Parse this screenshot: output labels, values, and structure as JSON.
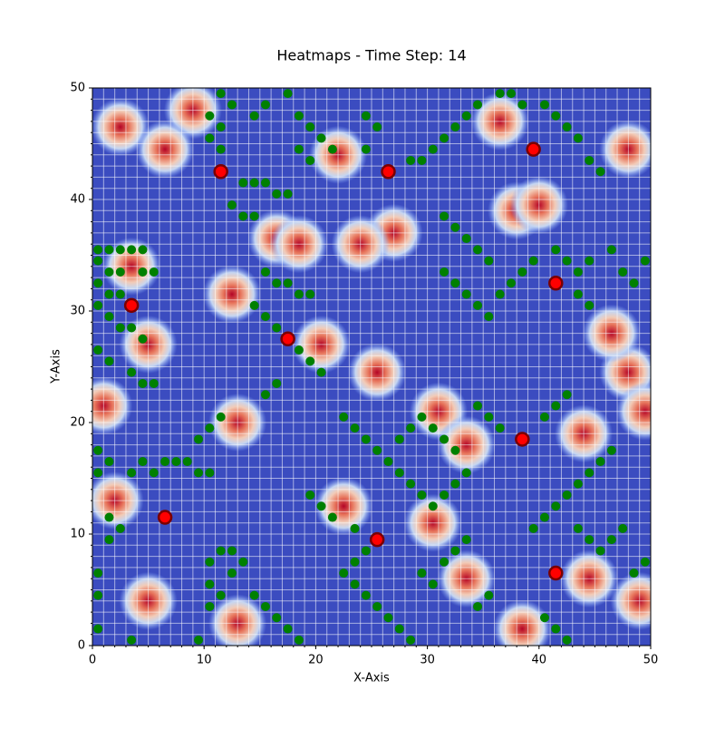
{
  "chart_data": {
    "type": "heatmap-scatter",
    "title": "Heatmaps - Time Step: 14",
    "x_label": "X-Axis",
    "y_label": "Y-Axis",
    "xlim": [
      0,
      50
    ],
    "ylim": [
      0,
      50
    ],
    "xticks": [
      0,
      10,
      20,
      30,
      40,
      50
    ],
    "yticks": [
      0,
      10,
      20,
      30,
      40,
      50
    ],
    "minor_step": 1,
    "grid": true,
    "background_color": "#3b4cc0",
    "hotspots": [
      [
        2.5,
        46.5
      ],
      [
        9,
        48
      ],
      [
        6.5,
        44.5
      ],
      [
        3.5,
        34
      ],
      [
        5,
        27
      ],
      [
        1,
        21.5
      ],
      [
        13,
        20
      ],
      [
        16.5,
        36.5
      ],
      [
        12.5,
        31.5
      ],
      [
        18.5,
        36
      ],
      [
        20.5,
        27
      ],
      [
        25.5,
        24.5
      ],
      [
        22.5,
        12.5
      ],
      [
        30.5,
        11
      ],
      [
        31,
        21
      ],
      [
        33.5,
        18
      ],
      [
        38,
        39
      ],
      [
        40,
        39.5
      ],
      [
        36.5,
        47
      ],
      [
        48,
        44.5
      ],
      [
        48,
        24.5
      ],
      [
        49.5,
        21
      ],
      [
        44,
        19
      ],
      [
        44.5,
        6
      ],
      [
        38.5,
        1.5
      ],
      [
        33.5,
        6
      ],
      [
        5,
        4
      ],
      [
        13,
        2
      ],
      [
        22,
        44
      ],
      [
        27,
        37
      ],
      [
        24,
        36
      ],
      [
        46.5,
        28
      ],
      [
        2,
        13
      ],
      [
        49,
        4
      ]
    ],
    "series": [
      {
        "color": "green",
        "points": [
          [
            0.5,
            35.5
          ],
          [
            1.5,
            35.5
          ],
          [
            2.5,
            35.5
          ],
          [
            3.5,
            35.5
          ],
          [
            4.5,
            35.5
          ],
          [
            0.5,
            34.5
          ],
          [
            1.5,
            33.5
          ],
          [
            2.5,
            33.5
          ],
          [
            4.5,
            33.5
          ],
          [
            5.5,
            33.5
          ],
          [
            0.5,
            32.5
          ],
          [
            1.5,
            31.5
          ],
          [
            2.5,
            31.5
          ],
          [
            0.5,
            30.5
          ],
          [
            1.5,
            29.5
          ],
          [
            2.5,
            28.5
          ],
          [
            3.5,
            28.5
          ],
          [
            4.5,
            27.5
          ],
          [
            0.5,
            26.5
          ],
          [
            1.5,
            25.5
          ],
          [
            3.5,
            24.5
          ],
          [
            4.5,
            23.5
          ],
          [
            5.5,
            23.5
          ],
          [
            11.5,
            49.5
          ],
          [
            12.5,
            48.5
          ],
          [
            10.5,
            47.5
          ],
          [
            11.5,
            46.5
          ],
          [
            10.5,
            45.5
          ],
          [
            11.5,
            44.5
          ],
          [
            14.5,
            47.5
          ],
          [
            15.5,
            48.5
          ],
          [
            17.5,
            49.5
          ],
          [
            13.5,
            41.5
          ],
          [
            14.5,
            41.5
          ],
          [
            15.5,
            41.5
          ],
          [
            16.5,
            40.5
          ],
          [
            17.5,
            40.5
          ],
          [
            12.5,
            39.5
          ],
          [
            13.5,
            38.5
          ],
          [
            14.5,
            38.5
          ],
          [
            15.5,
            33.5
          ],
          [
            16.5,
            32.5
          ],
          [
            17.5,
            32.5
          ],
          [
            18.5,
            31.5
          ],
          [
            19.5,
            31.5
          ],
          [
            14.5,
            30.5
          ],
          [
            15.5,
            29.5
          ],
          [
            16.5,
            28.5
          ],
          [
            18.5,
            26.5
          ],
          [
            19.5,
            25.5
          ],
          [
            20.5,
            24.5
          ],
          [
            16.5,
            23.5
          ],
          [
            15.5,
            22.5
          ],
          [
            18.5,
            47.5
          ],
          [
            19.5,
            46.5
          ],
          [
            20.5,
            45.5
          ],
          [
            21.5,
            44.5
          ],
          [
            18.5,
            44.5
          ],
          [
            19.5,
            43.5
          ],
          [
            24.5,
            47.5
          ],
          [
            25.5,
            46.5
          ],
          [
            24.5,
            44.5
          ],
          [
            28.5,
            43.5
          ],
          [
            29.5,
            43.5
          ],
          [
            30.5,
            44.5
          ],
          [
            31.5,
            45.5
          ],
          [
            32.5,
            46.5
          ],
          [
            33.5,
            47.5
          ],
          [
            34.5,
            48.5
          ],
          [
            36.5,
            49.5
          ],
          [
            37.5,
            49.5
          ],
          [
            38.5,
            48.5
          ],
          [
            40.5,
            48.5
          ],
          [
            41.5,
            47.5
          ],
          [
            42.5,
            46.5
          ],
          [
            43.5,
            45.5
          ],
          [
            44.5,
            43.5
          ],
          [
            45.5,
            42.5
          ],
          [
            31.5,
            38.5
          ],
          [
            32.5,
            37.5
          ],
          [
            33.5,
            36.5
          ],
          [
            34.5,
            35.5
          ],
          [
            35.5,
            34.5
          ],
          [
            31.5,
            33.5
          ],
          [
            32.5,
            32.5
          ],
          [
            33.5,
            31.5
          ],
          [
            34.5,
            30.5
          ],
          [
            35.5,
            29.5
          ],
          [
            36.5,
            31.5
          ],
          [
            37.5,
            32.5
          ],
          [
            38.5,
            33.5
          ],
          [
            39.5,
            34.5
          ],
          [
            41.5,
            35.5
          ],
          [
            42.5,
            34.5
          ],
          [
            43.5,
            33.5
          ],
          [
            44.5,
            34.5
          ],
          [
            46.5,
            35.5
          ],
          [
            47.5,
            33.5
          ],
          [
            48.5,
            32.5
          ],
          [
            49.5,
            34.5
          ],
          [
            43.5,
            31.5
          ],
          [
            44.5,
            30.5
          ],
          [
            22.5,
            20.5
          ],
          [
            23.5,
            19.5
          ],
          [
            24.5,
            18.5
          ],
          [
            25.5,
            17.5
          ],
          [
            26.5,
            16.5
          ],
          [
            27.5,
            15.5
          ],
          [
            28.5,
            14.5
          ],
          [
            29.5,
            13.5
          ],
          [
            30.5,
            12.5
          ],
          [
            31.5,
            13.5
          ],
          [
            32.5,
            14.5
          ],
          [
            33.5,
            15.5
          ],
          [
            27.5,
            18.5
          ],
          [
            28.5,
            19.5
          ],
          [
            29.5,
            20.5
          ],
          [
            30.5,
            19.5
          ],
          [
            31.5,
            18.5
          ],
          [
            32.5,
            17.5
          ],
          [
            34.5,
            21.5
          ],
          [
            35.5,
            20.5
          ],
          [
            36.5,
            19.5
          ],
          [
            19.5,
            13.5
          ],
          [
            20.5,
            12.5
          ],
          [
            21.5,
            11.5
          ],
          [
            23.5,
            10.5
          ],
          [
            24.5,
            8.5
          ],
          [
            23.5,
            7.5
          ],
          [
            22.5,
            6.5
          ],
          [
            23.5,
            5.5
          ],
          [
            24.5,
            4.5
          ],
          [
            25.5,
            3.5
          ],
          [
            26.5,
            2.5
          ],
          [
            27.5,
            1.5
          ],
          [
            28.5,
            0.5
          ],
          [
            29.5,
            6.5
          ],
          [
            30.5,
            5.5
          ],
          [
            31.5,
            7.5
          ],
          [
            32.5,
            8.5
          ],
          [
            33.5,
            9.5
          ],
          [
            34.5,
            3.5
          ],
          [
            35.5,
            4.5
          ],
          [
            39.5,
            10.5
          ],
          [
            40.5,
            11.5
          ],
          [
            41.5,
            12.5
          ],
          [
            42.5,
            13.5
          ],
          [
            43.5,
            14.5
          ],
          [
            44.5,
            15.5
          ],
          [
            45.5,
            16.5
          ],
          [
            46.5,
            17.5
          ],
          [
            40.5,
            20.5
          ],
          [
            41.5,
            21.5
          ],
          [
            42.5,
            22.5
          ],
          [
            43.5,
            10.5
          ],
          [
            44.5,
            9.5
          ],
          [
            45.5,
            8.5
          ],
          [
            46.5,
            9.5
          ],
          [
            47.5,
            10.5
          ],
          [
            48.5,
            6.5
          ],
          [
            49.5,
            7.5
          ],
          [
            40.5,
            2.5
          ],
          [
            41.5,
            1.5
          ],
          [
            42.5,
            0.5
          ],
          [
            0.5,
            17.5
          ],
          [
            1.5,
            16.5
          ],
          [
            0.5,
            15.5
          ],
          [
            1.5,
            11.5
          ],
          [
            2.5,
            10.5
          ],
          [
            1.5,
            9.5
          ],
          [
            3.5,
            15.5
          ],
          [
            4.5,
            16.5
          ],
          [
            5.5,
            15.5
          ],
          [
            6.5,
            16.5
          ],
          [
            7.5,
            16.5
          ],
          [
            8.5,
            16.5
          ],
          [
            9.5,
            18.5
          ],
          [
            10.5,
            19.5
          ],
          [
            11.5,
            20.5
          ],
          [
            9.5,
            15.5
          ],
          [
            10.5,
            15.5
          ],
          [
            10.5,
            7.5
          ],
          [
            11.5,
            8.5
          ],
          [
            12.5,
            8.5
          ],
          [
            13.5,
            7.5
          ],
          [
            10.5,
            5.5
          ],
          [
            11.5,
            4.5
          ],
          [
            10.5,
            3.5
          ],
          [
            9.5,
            0.5
          ],
          [
            12.5,
            6.5
          ],
          [
            14.5,
            4.5
          ],
          [
            15.5,
            3.5
          ],
          [
            16.5,
            2.5
          ],
          [
            17.5,
            1.5
          ],
          [
            18.5,
            0.5
          ],
          [
            0.5,
            6.5
          ],
          [
            0.5,
            4.5
          ],
          [
            0.5,
            1.5
          ],
          [
            3.5,
            0.5
          ]
        ]
      },
      {
        "color": "red",
        "points": [
          [
            11.5,
            42.5
          ],
          [
            26.5,
            42.5
          ],
          [
            39.5,
            44.5
          ],
          [
            3.5,
            30.5
          ],
          [
            17.5,
            27.5
          ],
          [
            41.5,
            32.5
          ],
          [
            38.5,
            18.5
          ],
          [
            6.5,
            11.5
          ],
          [
            25.5,
            9.5
          ],
          [
            41.5,
            6.5
          ]
        ]
      }
    ]
  }
}
